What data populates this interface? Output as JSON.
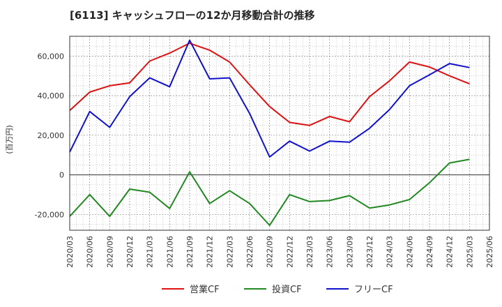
{
  "chart_data": {
    "type": "line",
    "title": "[6113]  キャッシュフローの12か月移動合計の推移",
    "ylabel": "(百万円)",
    "xlabel": "",
    "x": [
      "2020/03",
      "2020/06",
      "2020/09",
      "2020/12",
      "2021/03",
      "2021/06",
      "2021/09",
      "2021/12",
      "2022/03",
      "2022/06",
      "2022/09",
      "2022/12",
      "2023/03",
      "2023/06",
      "2023/09",
      "2023/12",
      "2024/03",
      "2024/06",
      "2024/09",
      "2024/12",
      "2025/03"
    ],
    "x_ticks": [
      "2020/03",
      "2020/06",
      "2020/09",
      "2020/12",
      "2021/03",
      "2021/06",
      "2021/09",
      "2021/12",
      "2022/03",
      "2022/06",
      "2022/09",
      "2022/12",
      "2023/03",
      "2023/06",
      "2023/09",
      "2023/12",
      "2024/03",
      "2024/06",
      "2024/09",
      "2024/12",
      "2025/03",
      "2025/06"
    ],
    "y_ticks": [
      -20000,
      0,
      20000,
      40000,
      60000
    ],
    "y_tick_labels": [
      "-20,000",
      "0",
      "20,000",
      "40,000",
      "60,000"
    ],
    "ylim": [
      -28000,
      70000
    ],
    "grid": true,
    "legend_position": "bottom",
    "series": [
      {
        "name": "営業CF",
        "color": "#dd1111",
        "values": [
          32500,
          41800,
          45000,
          46500,
          57500,
          61500,
          66500,
          63000,
          57000,
          45500,
          34500,
          26500,
          25000,
          29500,
          26800,
          39500,
          47500,
          57000,
          54500,
          50000,
          46000
        ]
      },
      {
        "name": "投資CF",
        "color": "#228822",
        "values": [
          -21000,
          -10000,
          -21000,
          -7200,
          -8800,
          -17000,
          1500,
          -14500,
          -8000,
          -14500,
          -25500,
          -10000,
          -13500,
          -13000,
          -10500,
          -16800,
          -15200,
          -12500,
          -4000,
          6000,
          7800
        ]
      },
      {
        "name": "フリーCF",
        "color": "#1111cc",
        "values": [
          11500,
          32000,
          24000,
          39500,
          49000,
          44500,
          68000,
          48500,
          49000,
          31000,
          9000,
          17000,
          12000,
          17000,
          16500,
          23500,
          33000,
          45000,
          50500,
          56200,
          54200
        ]
      }
    ]
  }
}
